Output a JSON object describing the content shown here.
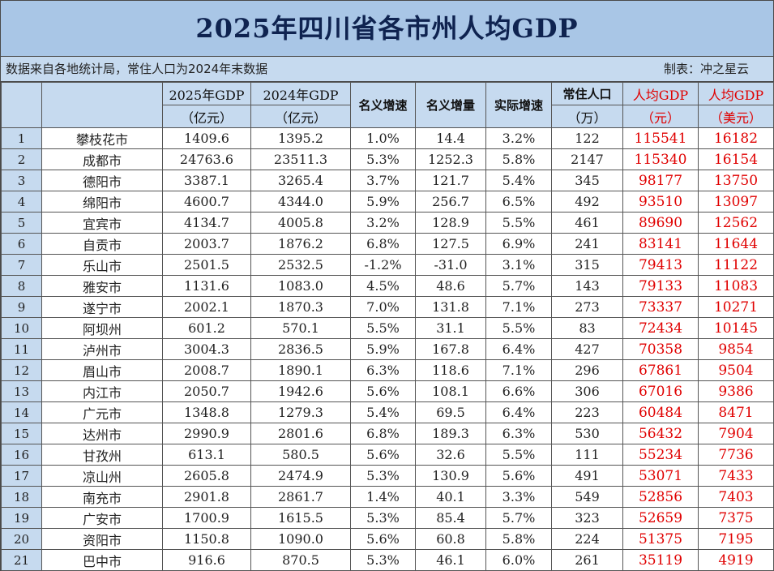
{
  "title": "2025年四川省各市州人均GDP",
  "note_left": "数据来自各地统计局，常住人口为2024年末数据",
  "note_right": "制表：冲之星云",
  "headers": {
    "gdp2025": "2025年GDP",
    "gdp2025_unit": "（亿元）",
    "gdp2024": "2024年GDP",
    "gdp2024_unit": "（亿元）",
    "nominal_growth": "名义增速",
    "nominal_increase": "名义增量",
    "real_growth": "实际增速",
    "population": "常住人口",
    "population_unit": "（万）",
    "per_capita_cny": "人均GDP",
    "per_capita_cny_unit": "（元）",
    "per_capita_usd": "人均GDP",
    "per_capita_usd_unit": "（美元）"
  },
  "rows": [
    {
      "rank": "1",
      "city": "攀枝花市",
      "gdp2025": "1409.6",
      "gdp2024": "1395.2",
      "ng": "1.0%",
      "ni": "14.4",
      "rg": "3.2%",
      "pop": "122",
      "pc": "115541",
      "usd": "16182"
    },
    {
      "rank": "2",
      "city": "成都市",
      "gdp2025": "24763.6",
      "gdp2024": "23511.3",
      "ng": "5.3%",
      "ni": "1252.3",
      "rg": "5.8%",
      "pop": "2147",
      "pc": "115340",
      "usd": "16154"
    },
    {
      "rank": "3",
      "city": "德阳市",
      "gdp2025": "3387.1",
      "gdp2024": "3265.4",
      "ng": "3.7%",
      "ni": "121.7",
      "rg": "5.4%",
      "pop": "345",
      "pc": "98177",
      "usd": "13750"
    },
    {
      "rank": "4",
      "city": "绵阳市",
      "gdp2025": "4600.7",
      "gdp2024": "4344.0",
      "ng": "5.9%",
      "ni": "256.7",
      "rg": "6.5%",
      "pop": "492",
      "pc": "93510",
      "usd": "13097"
    },
    {
      "rank": "5",
      "city": "宜宾市",
      "gdp2025": "4134.7",
      "gdp2024": "4005.8",
      "ng": "3.2%",
      "ni": "128.9",
      "rg": "5.5%",
      "pop": "461",
      "pc": "89690",
      "usd": "12562"
    },
    {
      "rank": "6",
      "city": "自贡市",
      "gdp2025": "2003.7",
      "gdp2024": "1876.2",
      "ng": "6.8%",
      "ni": "127.5",
      "rg": "6.9%",
      "pop": "241",
      "pc": "83141",
      "usd": "11644"
    },
    {
      "rank": "7",
      "city": "乐山市",
      "gdp2025": "2501.5",
      "gdp2024": "2532.5",
      "ng": "-1.2%",
      "ni": "-31.0",
      "rg": "3.1%",
      "pop": "315",
      "pc": "79413",
      "usd": "11122"
    },
    {
      "rank": "8",
      "city": "雅安市",
      "gdp2025": "1131.6",
      "gdp2024": "1083.0",
      "ng": "4.5%",
      "ni": "48.6",
      "rg": "5.7%",
      "pop": "143",
      "pc": "79133",
      "usd": "11083"
    },
    {
      "rank": "9",
      "city": "遂宁市",
      "gdp2025": "2002.1",
      "gdp2024": "1870.3",
      "ng": "7.0%",
      "ni": "131.8",
      "rg": "7.1%",
      "pop": "273",
      "pc": "73337",
      "usd": "10271"
    },
    {
      "rank": "10",
      "city": "阿坝州",
      "gdp2025": "601.2",
      "gdp2024": "570.1",
      "ng": "5.5%",
      "ni": "31.1",
      "rg": "5.5%",
      "pop": "83",
      "pc": "72434",
      "usd": "10145"
    },
    {
      "rank": "11",
      "city": "泸州市",
      "gdp2025": "3004.3",
      "gdp2024": "2836.5",
      "ng": "5.9%",
      "ni": "167.8",
      "rg": "6.4%",
      "pop": "427",
      "pc": "70358",
      "usd": "9854"
    },
    {
      "rank": "12",
      "city": "眉山市",
      "gdp2025": "2008.7",
      "gdp2024": "1890.1",
      "ng": "6.3%",
      "ni": "118.6",
      "rg": "7.1%",
      "pop": "296",
      "pc": "67861",
      "usd": "9504"
    },
    {
      "rank": "13",
      "city": "内江市",
      "gdp2025": "2050.7",
      "gdp2024": "1942.6",
      "ng": "5.6%",
      "ni": "108.1",
      "rg": "6.6%",
      "pop": "306",
      "pc": "67016",
      "usd": "9386"
    },
    {
      "rank": "14",
      "city": "广元市",
      "gdp2025": "1348.8",
      "gdp2024": "1279.3",
      "ng": "5.4%",
      "ni": "69.5",
      "rg": "6.4%",
      "pop": "223",
      "pc": "60484",
      "usd": "8471"
    },
    {
      "rank": "15",
      "city": "达州市",
      "gdp2025": "2990.9",
      "gdp2024": "2801.6",
      "ng": "6.8%",
      "ni": "189.3",
      "rg": "6.3%",
      "pop": "530",
      "pc": "56432",
      "usd": "7904"
    },
    {
      "rank": "16",
      "city": "甘孜州",
      "gdp2025": "613.1",
      "gdp2024": "580.5",
      "ng": "5.6%",
      "ni": "32.6",
      "rg": "5.5%",
      "pop": "111",
      "pc": "55234",
      "usd": "7736"
    },
    {
      "rank": "17",
      "city": "凉山州",
      "gdp2025": "2605.8",
      "gdp2024": "2474.9",
      "ng": "5.3%",
      "ni": "130.9",
      "rg": "5.6%",
      "pop": "491",
      "pc": "53071",
      "usd": "7433"
    },
    {
      "rank": "18",
      "city": "南充市",
      "gdp2025": "2901.8",
      "gdp2024": "2861.7",
      "ng": "1.4%",
      "ni": "40.1",
      "rg": "3.3%",
      "pop": "549",
      "pc": "52856",
      "usd": "7403"
    },
    {
      "rank": "19",
      "city": "广安市",
      "gdp2025": "1700.9",
      "gdp2024": "1615.5",
      "ng": "5.3%",
      "ni": "85.4",
      "rg": "5.7%",
      "pop": "323",
      "pc": "52659",
      "usd": "7375"
    },
    {
      "rank": "20",
      "city": "资阳市",
      "gdp2025": "1150.8",
      "gdp2024": "1090.0",
      "ng": "5.6%",
      "ni": "60.8",
      "rg": "5.8%",
      "pop": "224",
      "pc": "51375",
      "usd": "7195"
    },
    {
      "rank": "21",
      "city": "巴中市",
      "gdp2025": "916.6",
      "gdp2024": "870.5",
      "ng": "5.3%",
      "ni": "46.1",
      "rg": "6.0%",
      "pop": "261",
      "pc": "35119",
      "usd": "4919"
    }
  ],
  "colors": {
    "title_bg": "#a9c6e6",
    "header_bg": "#c6daef",
    "title_text": "#0f2350",
    "highlight_red": "#e00000"
  }
}
